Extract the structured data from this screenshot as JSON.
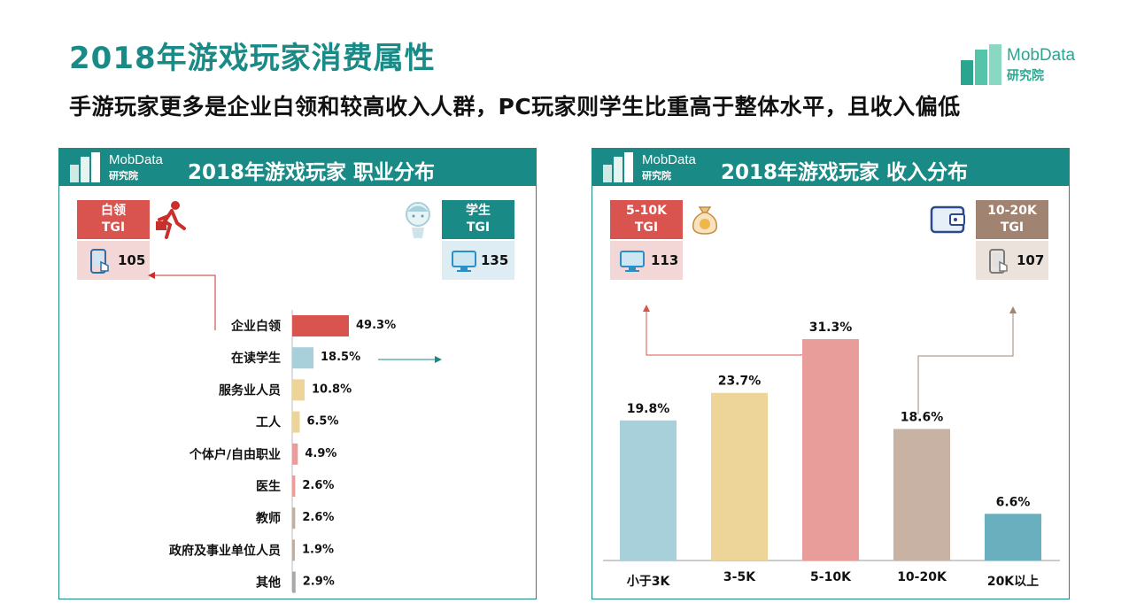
{
  "page": {
    "title": "2018年游戏玩家消费属性",
    "subtitle": "手游玩家更多是企业白领和较高收入人群，PC玩家则学生比重高于整体水平，且收入偏低"
  },
  "logo": {
    "name": "MobData",
    "sub": "研究院",
    "color": "#2aa58f"
  },
  "occupation_panel": {
    "logo_name": "MobData",
    "logo_sub": "研究院",
    "title": "2018年游戏玩家    职业分布",
    "left_tgi": {
      "label_line1": "白领",
      "label_line2": "TGI",
      "value": "105",
      "icon": "mobile-tap-icon",
      "figure_icon": "running-worker-icon"
    },
    "right_tgi": {
      "label_line1": "学生",
      "label_line2": "TGI",
      "value": "135",
      "icon": "monitor-icon",
      "figure_icon": "student-avatar-icon"
    }
  },
  "income_panel": {
    "logo_name": "MobData",
    "logo_sub": "研究院",
    "title": "2018年游戏玩家    收入分布",
    "left_tgi": {
      "label_line1": "5-10K",
      "label_line2": "TGI",
      "value": "113",
      "icon": "monitor-icon",
      "figure_icon": "money-bag-icon"
    },
    "right_tgi": {
      "label_line1": "10-20K",
      "label_line2": "TGI",
      "value": "107",
      "icon": "mobile-tap-icon",
      "figure_icon": "wallet-icon"
    }
  },
  "colors": {
    "teal": "#1a8a86",
    "red": "#d9534f",
    "pink": "#f2d7d6",
    "light_blue": "#deedf3",
    "brown": "#a08471",
    "light_brown": "#ebe2dc"
  },
  "chart_data": [
    {
      "type": "bar",
      "orientation": "horizontal",
      "categories": [
        "企业白领",
        "在读学生",
        "服务业人员",
        "工人",
        "个体户/自由职业",
        "医生",
        "教师",
        "政府及事业单位人员",
        "其他"
      ],
      "values": [
        49.3,
        18.5,
        10.8,
        6.5,
        4.9,
        2.6,
        2.6,
        1.9,
        2.9
      ],
      "labels": [
        "49.3%",
        "18.5%",
        "10.8%",
        "6.5%",
        "4.9%",
        "2.6%",
        "2.6%",
        "1.9%",
        "2.9%"
      ],
      "bar_colors": [
        "#d9534f",
        "#a8d0da",
        "#edd59a",
        "#edd59a",
        "#e89d9b",
        "#e89d9b",
        "#bfb0a3",
        "#bfb0a3",
        "#a8a8a8"
      ],
      "unit": "%"
    },
    {
      "type": "bar",
      "orientation": "vertical",
      "categories": [
        "小于3K",
        "3-5K",
        "5-10K",
        "10-20K",
        "20K以上"
      ],
      "values": [
        19.8,
        23.7,
        31.3,
        18.6,
        6.6
      ],
      "labels": [
        "19.8%",
        "23.7%",
        "31.3%",
        "18.6%",
        "6.6%"
      ],
      "bar_colors": [
        "#a8d0da",
        "#edd59a",
        "#e89d9b",
        "#c7b2a4",
        "#6aafbd"
      ],
      "unit": "%"
    }
  ]
}
